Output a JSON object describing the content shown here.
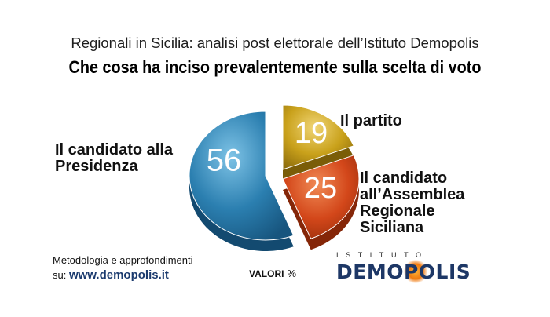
{
  "header": {
    "subtitle": "Regionali in Sicilia: analisi post elettorale dell’Istituto Demopolis",
    "title": "Che cosa ha inciso prevalentemente sulla scelta di voto"
  },
  "chart_data": {
    "type": "pie",
    "unit": "%",
    "slices": [
      {
        "label": "Il candidato alla Presidenza",
        "value": 56,
        "color": "#2b7fb0"
      },
      {
        "label": "Il partito",
        "value": 19,
        "color": "#c9a11b"
      },
      {
        "label": "Il candidato all’Assemblea Regionale Siciliana",
        "value": 25,
        "color": "#d3471a"
      }
    ]
  },
  "labels": {
    "presidenza_line1": "Il candidato alla",
    "presidenza_line2": "Presidenza",
    "partito": "Il partito",
    "assemblea_line1": "Il candidato",
    "assemblea_line2": "all’Assemblea",
    "assemblea_line3": "Regionale",
    "assemblea_line4": "Siciliana"
  },
  "footer": {
    "method_line1": "Metodologia e approfondimenti",
    "method_prefix": "su:",
    "method_url": "www.demopolis.it",
    "valori_label": "VALORI",
    "valori_unit": "%"
  },
  "logo": {
    "top_text": "ISTITUTO",
    "main_text": "DEMOPOLIS"
  }
}
